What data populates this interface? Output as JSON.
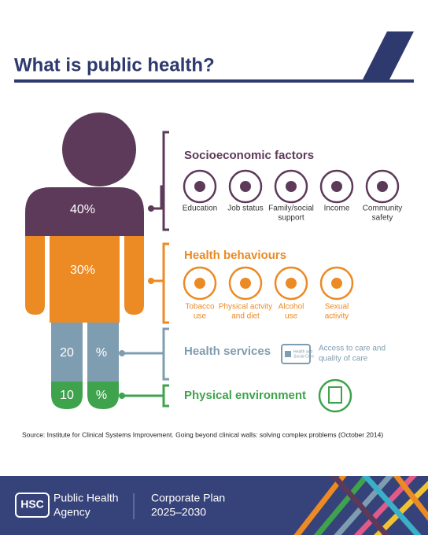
{
  "header": {
    "title": "What is public health?"
  },
  "figure": {
    "bands": [
      {
        "number": "40",
        "unit": "%"
      },
      {
        "number": "30",
        "unit": "%"
      },
      {
        "number": "20",
        "unit": "%"
      },
      {
        "number": "10",
        "unit": "%"
      }
    ]
  },
  "factors": [
    {
      "title": "Socioeconomic factors",
      "items": [
        [
          "Education"
        ],
        [
          "Job status"
        ],
        [
          "Family/social",
          "support"
        ],
        [
          "Income"
        ],
        [
          "Community",
          "safety"
        ]
      ]
    },
    {
      "title": "Health behaviours",
      "items": [
        [
          "Tobacco",
          "use"
        ],
        [
          "Physical actvity",
          "and diet"
        ],
        [
          "Alcohol",
          "use"
        ],
        [
          "Sexual",
          "activity"
        ]
      ]
    },
    {
      "title": "Health services",
      "icon_text": [
        "Health and",
        "Social Care"
      ],
      "description": [
        "Access to care and",
        "quality of care"
      ]
    },
    {
      "title": "Physical environment"
    }
  ],
  "source": "Source: Institute for Clinical Systems Improvement. Going beyond clinical walls: solving complex problems (October 2014)",
  "footer": {
    "logo": "HSC",
    "org": [
      "Public Health",
      "Agency"
    ],
    "plan": [
      "Corporate Plan",
      "2025–2030"
    ]
  }
}
